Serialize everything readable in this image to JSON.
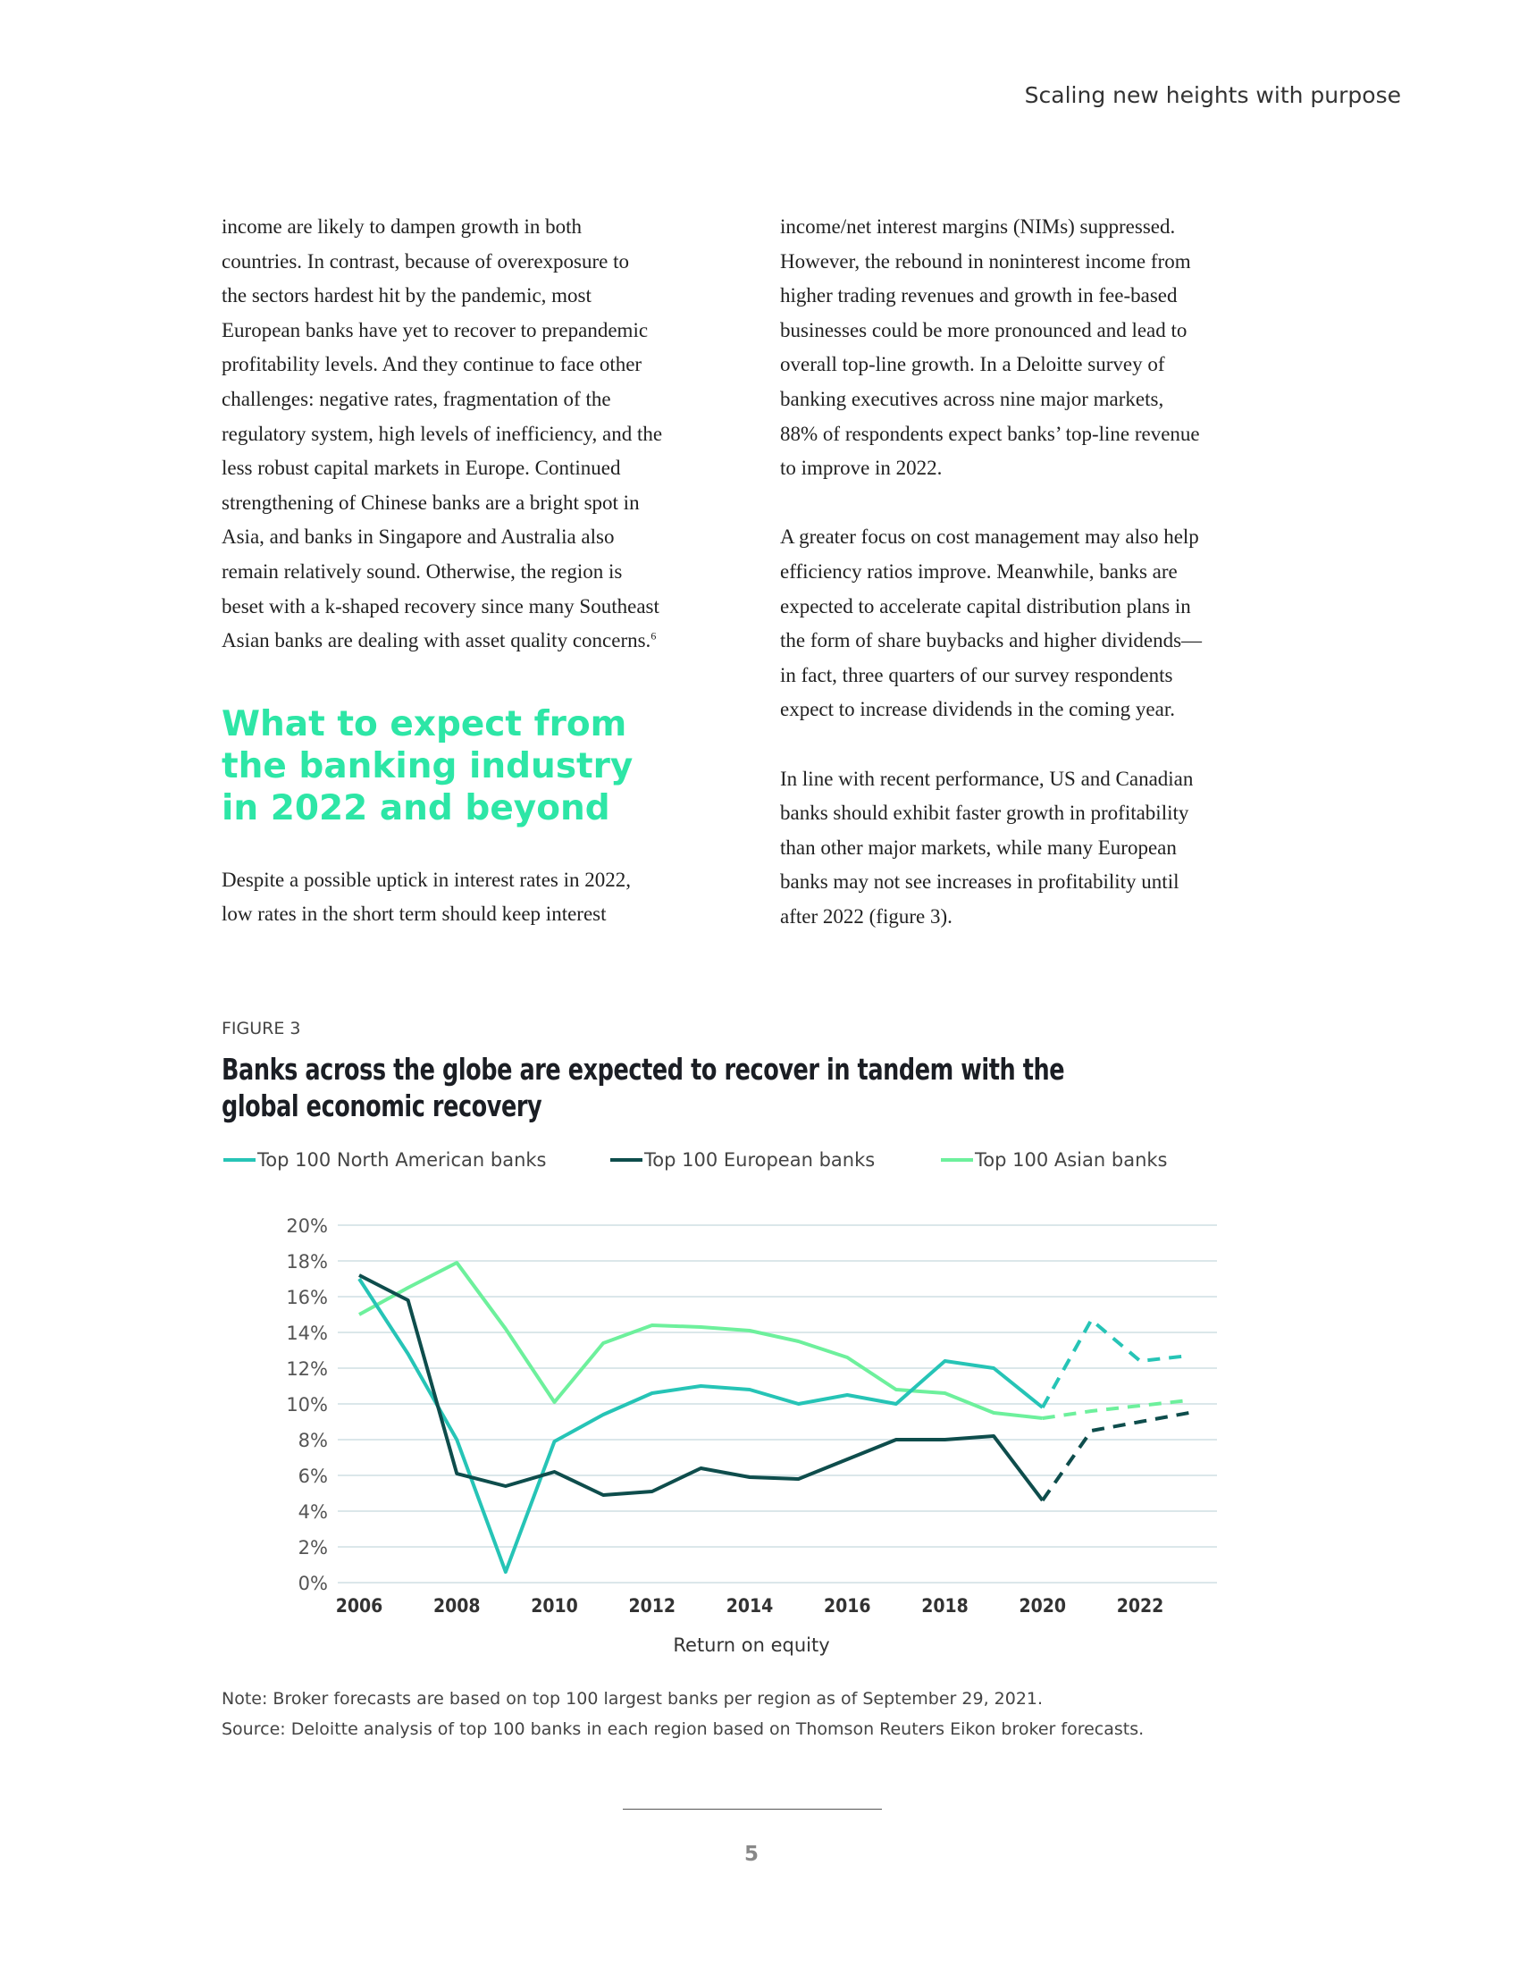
{
  "header": {
    "running_title": "Scaling new heights with purpose"
  },
  "left_column": {
    "para1": [
      "income are likely to dampen growth in both",
      "countries. In contrast, because of overexposure to",
      "the sectors hardest hit by the pandemic, most",
      "European banks have yet to recover to prepandemic",
      "profitability levels. And they continue to face other",
      "challenges: negative rates, fragmentation of the",
      "regulatory system, high levels of inefficiency, and the",
      "less robust capital markets in Europe. Continued",
      "strengthening of Chinese banks are a bright spot in",
      "Asia, and banks in Singapore and Australia also",
      "remain relatively sound. Otherwise, the region is",
      "beset with a k-shaped recovery since many Southeast",
      "Asian banks are dealing with asset quality concerns."
    ],
    "footnote_ref": "6",
    "heading": [
      "What to expect from",
      "the banking industry",
      "in 2022 and beyond"
    ],
    "para2": [
      "Despite a possible uptick in interest rates in 2022,",
      "low rates in the short term should keep interest"
    ]
  },
  "right_column": {
    "para1": [
      "income/net interest margins (NIMs) suppressed.",
      "However, the rebound in noninterest income from",
      "higher trading revenues and growth in fee-based",
      "businesses could be more pronounced and lead to",
      "overall top-line growth. In a Deloitte survey of",
      "banking executives across nine major markets,",
      "88% of respondents expect banks’ top-line revenue",
      "to improve in 2022."
    ],
    "para2": [
      "A greater focus on cost management may also help",
      "efficiency ratios improve. Meanwhile, banks are",
      "expected to accelerate capital distribution plans in",
      "the form of share buybacks and higher dividends—",
      "in fact, three quarters of our survey respondents",
      "expect to increase dividends in the coming year."
    ],
    "para3": [
      "In line with recent performance, US and Canadian",
      "banks should exhibit faster growth in profitability",
      "than other major markets, while many European",
      "banks may not see increases in profitability until",
      "after 2022 (figure 3)."
    ]
  },
  "figure": {
    "label": "FIGURE 3",
    "title": "Banks across the globe are expected to recover in tandem with the global economic recovery",
    "note": "Note: Broker forecasts are based on top 100 largest banks per region as of September 29, 2021.",
    "source": "Source: Deloitte analysis of top 100 banks in each region based on Thomson Reuters Eikon broker forecasts."
  },
  "chart_data": {
    "type": "line",
    "title": "Banks across the globe are expected to recover in tandem with the global economic recovery",
    "xlabel": "Return on equity",
    "ylabel": "",
    "x": [
      2006,
      2007,
      2008,
      2009,
      2010,
      2011,
      2012,
      2013,
      2014,
      2015,
      2016,
      2017,
      2018,
      2019,
      2020,
      2021,
      2022,
      2023
    ],
    "xticks": [
      "2006",
      "2008",
      "2010",
      "2012",
      "2014",
      "2016",
      "2018",
      "2020",
      "2022"
    ],
    "yticks": [
      "0%",
      "2%",
      "4%",
      "6%",
      "8%",
      "10%",
      "12%",
      "14%",
      "16%",
      "18%",
      "20%"
    ],
    "ylim": [
      0,
      20
    ],
    "grid": true,
    "legend_position": "top",
    "forecast_from": 2020,
    "series": [
      {
        "name": "Top 100 North American banks",
        "color": "#26c4b6",
        "values": [
          17.0,
          12.8,
          8.0,
          0.6,
          7.9,
          9.4,
          10.6,
          11.0,
          10.8,
          10.0,
          10.5,
          10.0,
          12.4,
          12.0,
          9.8,
          14.7,
          12.4,
          12.7
        ]
      },
      {
        "name": "Top 100 European banks",
        "color": "#0e4d4c",
        "values": [
          17.2,
          15.8,
          6.1,
          5.4,
          6.2,
          4.9,
          5.1,
          6.4,
          5.9,
          5.8,
          6.9,
          8.0,
          8.0,
          8.2,
          4.6,
          8.5,
          9.0,
          9.5
        ]
      },
      {
        "name": "Top 100 Asian banks",
        "color": "#6df09c",
        "values": [
          15.0,
          16.5,
          17.9,
          14.2,
          10.1,
          13.4,
          14.4,
          14.3,
          14.1,
          13.5,
          12.6,
          10.8,
          10.6,
          9.5,
          9.2,
          9.6,
          9.9,
          10.2
        ]
      }
    ]
  },
  "footer": {
    "page_number": "5"
  }
}
